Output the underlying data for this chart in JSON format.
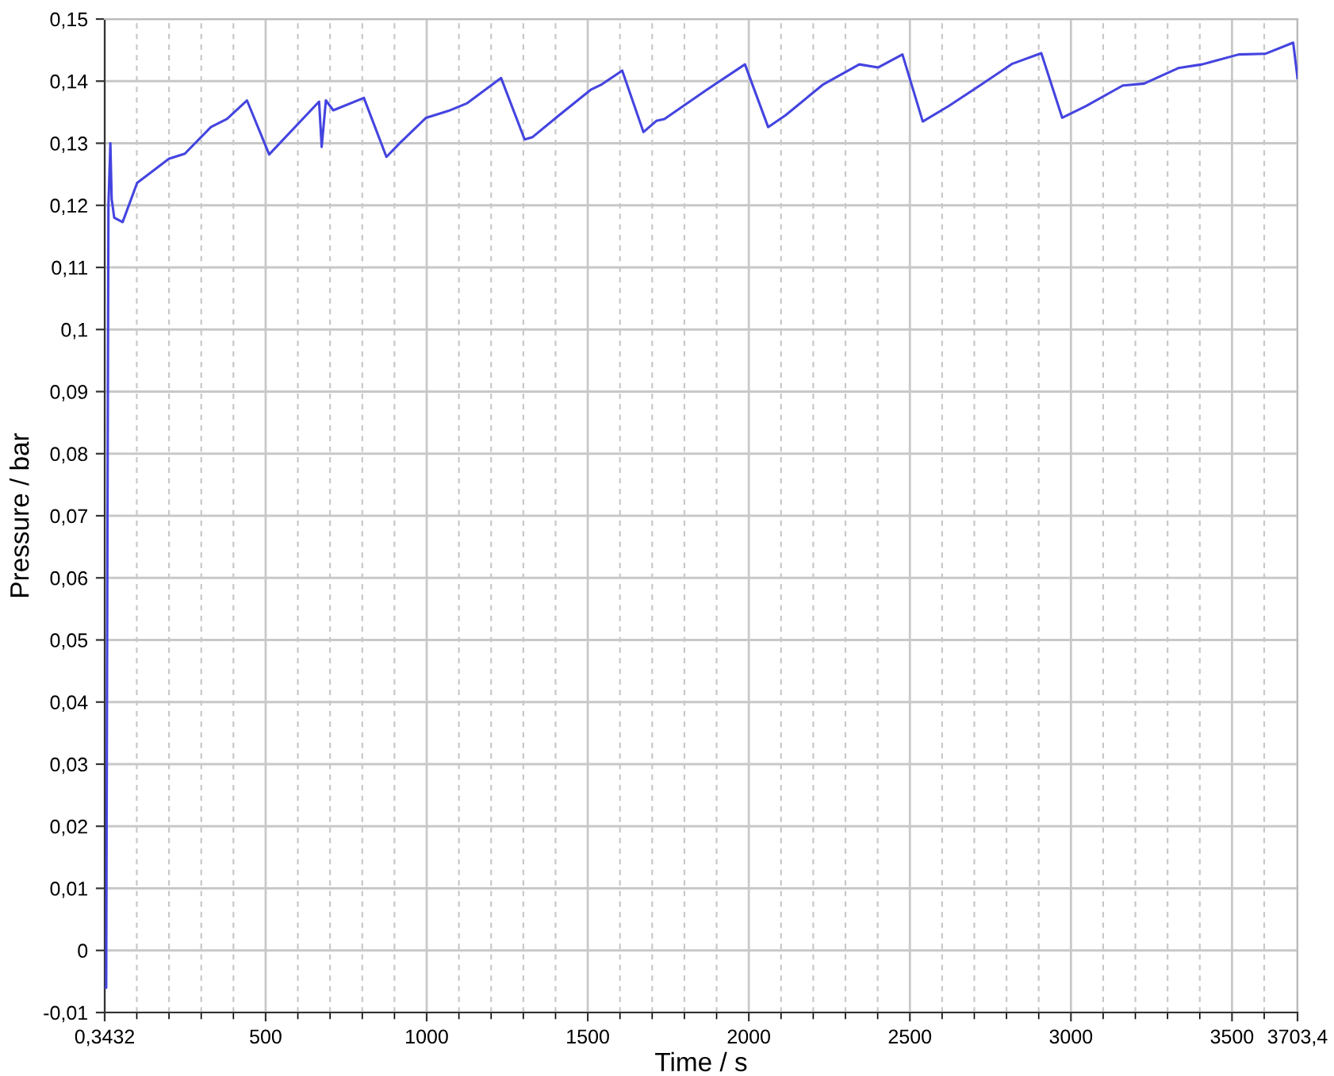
{
  "chart_data": {
    "type": "line",
    "xlabel": "Time / s",
    "ylabel": "Pressure / bar",
    "x": [
      0.3432,
      5,
      8,
      12,
      18,
      22,
      30,
      56,
      101,
      200,
      249,
      330,
      380,
      442,
      511,
      666,
      674,
      687,
      710,
      805,
      875,
      920,
      998,
      1067,
      1124,
      1231,
      1304,
      1329,
      1411,
      1509,
      1541,
      1607,
      1673,
      1713,
      1738,
      1869,
      1988,
      2060,
      2114,
      2229,
      2343,
      2401,
      2477,
      2540,
      2621,
      2720,
      2818,
      2908,
      2973,
      3047,
      3161,
      3227,
      3333,
      3407,
      3521,
      3603,
      3690,
      3703.4
    ],
    "series": [
      {
        "color": "#4444e0",
        "values": [
          -0.006,
          -0.006,
          0.05,
          0.12,
          0.13,
          0.121,
          0.118,
          0.1173,
          0.1236,
          0.1275,
          0.1283,
          0.1326,
          0.1339,
          0.1369,
          0.1282,
          0.1367,
          0.1294,
          0.1369,
          0.1353,
          0.1373,
          0.1278,
          0.1302,
          0.1341,
          0.1352,
          0.1364,
          0.1405,
          0.1306,
          0.131,
          0.1345,
          0.1386,
          0.1394,
          0.1417,
          0.1318,
          0.1336,
          0.1339,
          0.1386,
          0.1427,
          0.1326,
          0.1345,
          0.1394,
          0.1427,
          0.1422,
          0.1443,
          0.1335,
          0.136,
          0.1394,
          0.1428,
          0.1445,
          0.1341,
          0.136,
          0.1393,
          0.1396,
          0.1421,
          0.1427,
          0.1443,
          0.1444,
          0.1462,
          0.1405
        ]
      }
    ],
    "xlim": [
      0.3432,
      3703.4
    ],
    "xticks": [
      {
        "value": 0.3432,
        "label": "0,3432"
      },
      {
        "value": 100,
        "label": null
      },
      {
        "value": 200,
        "label": null
      },
      {
        "value": 300,
        "label": null
      },
      {
        "value": 400,
        "label": null
      },
      500,
      {
        "value": 600,
        "label": null
      },
      {
        "value": 700,
        "label": null
      },
      {
        "value": 800,
        "label": null
      },
      {
        "value": 900,
        "label": null
      },
      1000,
      {
        "value": 1100,
        "label": null
      },
      {
        "value": 1200,
        "label": null
      },
      {
        "value": 1300,
        "label": null
      },
      {
        "value": 1400,
        "label": null
      },
      1500,
      {
        "value": 1600,
        "label": null
      },
      {
        "value": 1700,
        "label": null
      },
      {
        "value": 1800,
        "label": null
      },
      {
        "value": 1900,
        "label": null
      },
      2000,
      {
        "value": 2100,
        "label": null
      },
      {
        "value": 2200,
        "label": null
      },
      {
        "value": 2300,
        "label": null
      },
      {
        "value": 2400,
        "label": null
      },
      2500,
      {
        "value": 2600,
        "label": null
      },
      {
        "value": 2700,
        "label": null
      },
      {
        "value": 2800,
        "label": null
      },
      {
        "value": 2900,
        "label": null
      },
      3000,
      {
        "value": 3100,
        "label": null
      },
      {
        "value": 3200,
        "label": null
      },
      {
        "value": 3300,
        "label": null
      },
      {
        "value": 3400,
        "label": null
      },
      3500,
      {
        "value": 3600,
        "label": null
      },
      {
        "value": 3703.4,
        "label": "3703,4"
      }
    ],
    "ylim": [
      -0.01,
      0.15
    ],
    "yticks": [
      {
        "value": -0.01,
        "label": "-0,01"
      },
      0,
      {
        "value": 0.01,
        "label": "0,01"
      },
      {
        "value": 0.02,
        "label": "0,02"
      },
      {
        "value": 0.03,
        "label": "0,03"
      },
      {
        "value": 0.04,
        "label": "0,04"
      },
      {
        "value": 0.05,
        "label": "0,05"
      },
      {
        "value": 0.06,
        "label": "0,06"
      },
      {
        "value": 0.07,
        "label": "0,07"
      },
      {
        "value": 0.08,
        "label": "0,08"
      },
      {
        "value": 0.09,
        "label": "0,09"
      },
      {
        "value": 0.1,
        "label": "0,1"
      },
      {
        "value": 0.11,
        "label": "0,11"
      },
      {
        "value": 0.12,
        "label": "0,12"
      },
      {
        "value": 0.13,
        "label": "0,13"
      },
      {
        "value": 0.14,
        "label": "0,14"
      },
      {
        "value": 0.15,
        "label": "0,15"
      }
    ],
    "grid": true,
    "marker": "none",
    "line_style": "solid"
  }
}
